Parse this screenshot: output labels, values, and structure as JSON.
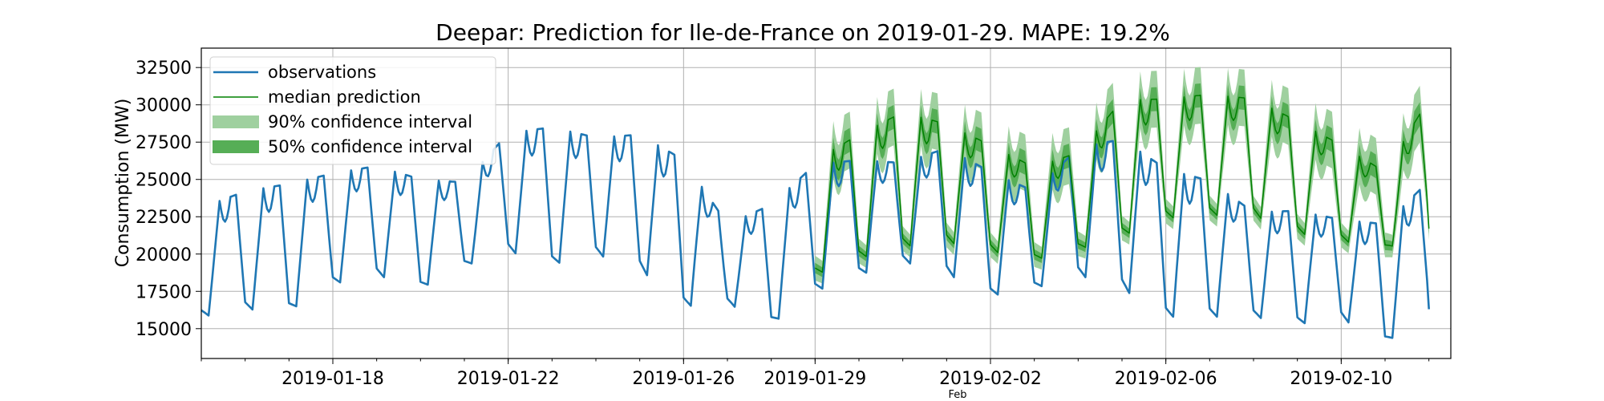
{
  "chart_data": {
    "type": "line",
    "title": "Deepar: Prediction for Ile-de-France on 2019-01-29. MAPE: 19.2%",
    "ylabel": "Consumption (MW)",
    "xlabel": "",
    "x_minor_label": "Feb",
    "ylim": [
      13000,
      33800
    ],
    "xlim": [
      "2019-01-15",
      "2019-02-12"
    ],
    "grid": true,
    "legend_position": "upper-left",
    "y_ticks": [
      15000,
      17500,
      20000,
      22500,
      25000,
      27500,
      30000,
      32500
    ],
    "y_tick_labels": [
      "15000",
      "17500",
      "20000",
      "22500",
      "25000",
      "27500",
      "30000",
      "32500"
    ],
    "x_ticks": [
      "2019-01-18",
      "2019-01-22",
      "2019-01-26",
      "2019-01-29",
      "2019-02-02",
      "2019-02-06",
      "2019-02-10"
    ],
    "x_tick_labels": [
      "2019-01-18",
      "2019-01-22",
      "2019-01-26",
      "2019-01-29",
      "2019-02-02",
      "2019-02-06",
      "2019-02-10"
    ],
    "colors": {
      "observations": "#1f77b4",
      "median": "#008000",
      "ci90": "#9fd09f",
      "ci50": "#56ae56"
    },
    "legend": [
      {
        "label": "observations",
        "kind": "line",
        "color": "#1f77b4"
      },
      {
        "label": "median prediction",
        "kind": "thin-line",
        "color": "#008000"
      },
      {
        "label": "90% confidence interval",
        "kind": "band",
        "color": "#9fd09f"
      },
      {
        "label": "50% confidence interval",
        "kind": "band",
        "color": "#56ae56"
      }
    ],
    "series": [
      {
        "name": "observations",
        "daily_points": [
          {
            "date": "2019-01-15",
            "trough": 15800,
            "peak": 23100
          },
          {
            "date": "2019-01-16",
            "trough": 16300,
            "peak": 24200
          },
          {
            "date": "2019-01-17",
            "trough": 16200,
            "peak": 24700
          },
          {
            "date": "2019-01-18",
            "trough": 18000,
            "peak": 25400
          },
          {
            "date": "2019-01-19",
            "trough": 18600,
            "peak": 25900
          },
          {
            "date": "2019-01-20",
            "trough": 17700,
            "peak": 25000
          },
          {
            "date": "2019-01-21",
            "trough": 19200,
            "peak": 24800
          },
          {
            "date": "2019-01-22",
            "trough": 20200,
            "peak": 28100
          },
          {
            "date": "2019-01-23",
            "trough": 19300,
            "peak": 28500
          },
          {
            "date": "2019-01-24",
            "trough": 20000,
            "peak": 27800
          },
          {
            "date": "2019-01-25",
            "trough": 19000,
            "peak": 28000
          },
          {
            "date": "2019-01-26",
            "trough": 16500,
            "peak": 26300
          },
          {
            "date": "2019-01-27",
            "trough": 16700,
            "peak": 22000
          },
          {
            "date": "2019-01-28",
            "trough": 15300,
            "peak": 23300
          },
          {
            "date": "2019-01-29",
            "trough": 17500,
            "peak": 26000
          },
          {
            "date": "2019-01-30",
            "trough": 18600,
            "peak": 26300
          },
          {
            "date": "2019-01-31",
            "trough": 19500,
            "peak": 26100
          },
          {
            "date": "2019-02-01",
            "trough": 18700,
            "peak": 27100
          },
          {
            "date": "2019-02-02",
            "trough": 17200,
            "peak": 25500
          },
          {
            "date": "2019-02-03",
            "trough": 17700,
            "peak": 24200
          },
          {
            "date": "2019-02-04",
            "trough": 18600,
            "peak": 27100
          },
          {
            "date": "2019-02-05",
            "trough": 17700,
            "peak": 27700
          },
          {
            "date": "2019-02-06",
            "trough": 15800,
            "peak": 25700
          },
          {
            "date": "2019-02-07",
            "trough": 15800,
            "peak": 24900
          },
          {
            "date": "2019-02-08",
            "trough": 15800,
            "peak": 22800
          },
          {
            "date": "2019-02-09",
            "trough": 15300,
            "peak": 22900
          },
          {
            "date": "2019-02-10",
            "trough": 15700,
            "peak": 22300
          },
          {
            "date": "2019-02-11",
            "trough": 14000,
            "peak": 22000
          },
          {
            "date": "2019-02-12",
            "trough": 16300,
            "peak": 24900
          }
        ]
      },
      {
        "name": "median prediction",
        "daily_points": [
          {
            "date": "2019-01-29",
            "trough": 18600,
            "peak": 26300
          },
          {
            "date": "2019-01-30",
            "trough": 19700,
            "peak": 28000
          },
          {
            "date": "2019-01-31",
            "trough": 20500,
            "peak": 29500
          },
          {
            "date": "2019-02-01",
            "trough": 20800,
            "peak": 28700
          },
          {
            "date": "2019-02-02",
            "trough": 20200,
            "peak": 27300
          },
          {
            "date": "2019-02-03",
            "trough": 19600,
            "peak": 25800
          },
          {
            "date": "2019-02-04",
            "trough": 20300,
            "peak": 26800
          },
          {
            "date": "2019-02-05",
            "trough": 21200,
            "peak": 30300
          },
          {
            "date": "2019-02-06",
            "trough": 22400,
            "peak": 30400
          },
          {
            "date": "2019-02-07",
            "trough": 22600,
            "peak": 30700
          },
          {
            "date": "2019-02-08",
            "trough": 22600,
            "peak": 30400
          },
          {
            "date": "2019-02-09",
            "trough": 21400,
            "peak": 28900
          },
          {
            "date": "2019-02-10",
            "trough": 20900,
            "peak": 27300
          },
          {
            "date": "2019-02-11",
            "trough": 20300,
            "peak": 25500
          },
          {
            "date": "2019-02-12",
            "trough": 21700,
            "peak": 30400
          }
        ],
        "band50_halfwidth": 800,
        "band90_halfwidth": 1900
      }
    ]
  }
}
